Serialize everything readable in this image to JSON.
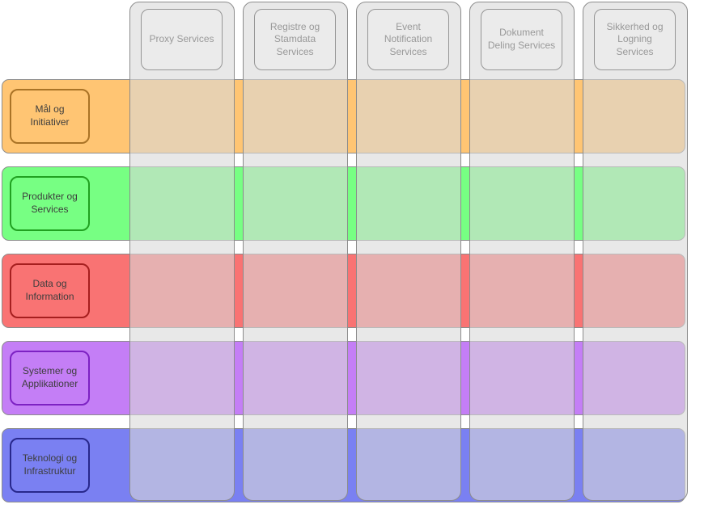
{
  "diagram": {
    "type": "capability-service-matrix",
    "columns": [
      {
        "label": "Proxy Services"
      },
      {
        "label": "Registre og Stamdata Services"
      },
      {
        "label": "Event Notification Services"
      },
      {
        "label": "Dokument Deling Services"
      },
      {
        "label": "Sikkerhed og Logning Services"
      }
    ],
    "rows": [
      {
        "label": "Mål og Initiativer",
        "fill": "#FFC573",
        "border": "#AA7326"
      },
      {
        "label": "Produkter og Services",
        "fill": "#77FF83",
        "border": "#21A121"
      },
      {
        "label": "Data og Information",
        "fill": "#F97373",
        "border": "#A61F1F"
      },
      {
        "label": "Systemer og Applikationer",
        "fill": "#C47EF6",
        "border": "#7D22C3"
      },
      {
        "label": "Teknologi og Infrastruktur",
        "fill": "#7A80F2",
        "border": "#28288C"
      }
    ],
    "colors": {
      "column_fill": "rgba(216,216,216,0.6)",
      "column_border": "#8C8C8C",
      "header_fill": "#EBEBEB",
      "header_border": "#969696",
      "header_text": "#999999",
      "row_border": "#8C8C8C",
      "row_text": "#3D3D3D"
    }
  }
}
